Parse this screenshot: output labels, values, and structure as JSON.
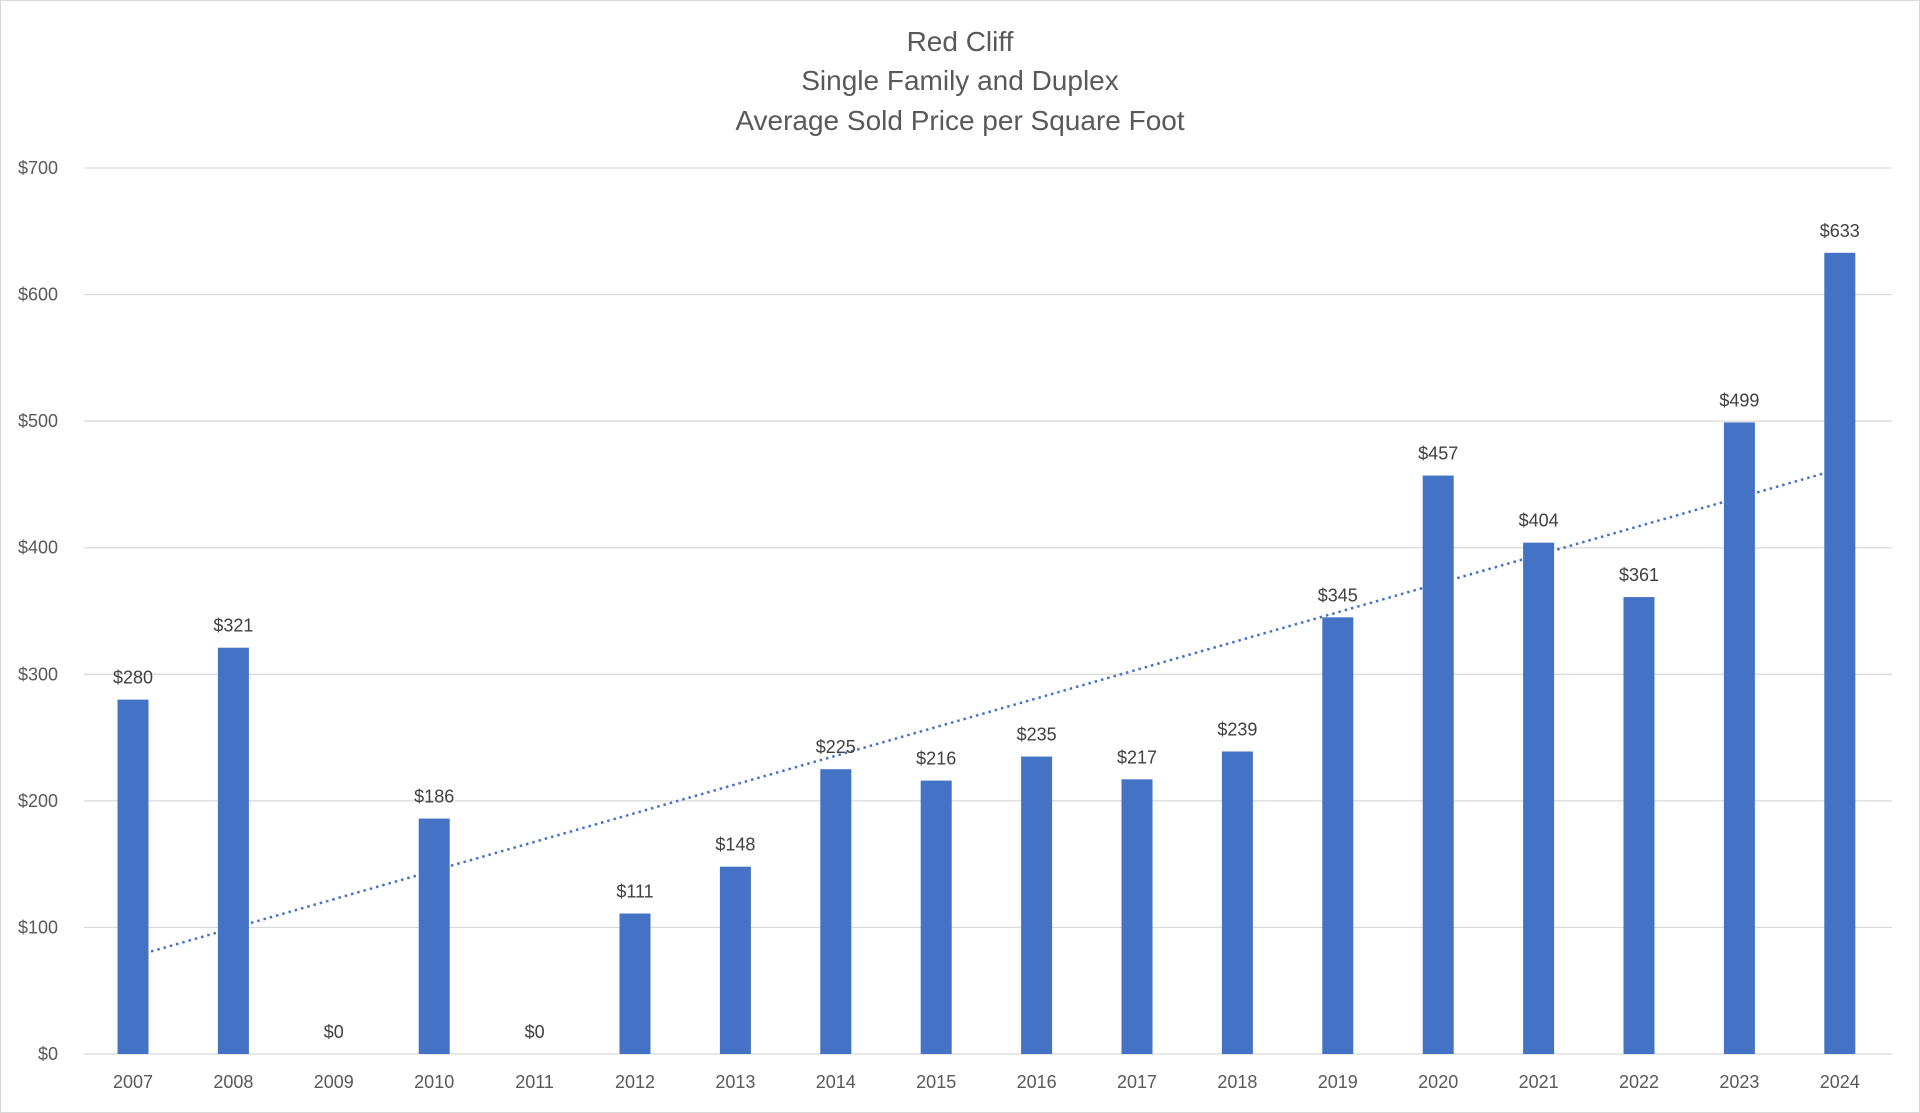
{
  "chart_data": {
    "type": "bar",
    "title_lines": [
      "Red Cliff",
      "Single Family and Duplex",
      "Average Sold Price per Square Foot"
    ],
    "xlabel": "",
    "ylabel": "",
    "categories": [
      "2007",
      "2008",
      "2009",
      "2010",
      "2011",
      "2012",
      "2013",
      "2014",
      "2015",
      "2016",
      "2017",
      "2018",
      "2019",
      "2020",
      "2021",
      "2022",
      "2023",
      "2024"
    ],
    "series": [
      {
        "values": [
          280,
          321,
          0,
          186,
          0,
          111,
          148,
          225,
          216,
          235,
          217,
          239,
          345,
          457,
          404,
          361,
          499,
          633
        ],
        "data_labels": [
          "$280",
          "$321",
          "$0",
          "$186",
          "$0",
          "$111",
          "$148",
          "$225",
          "$216",
          "$235",
          "$217",
          "$239",
          "$345",
          "$457",
          "$404",
          "$361",
          "$499",
          "$633"
        ],
        "color": "#4472c4"
      }
    ],
    "trendline": {
      "type": "linear",
      "style": "dotted",
      "color": "#4472c4",
      "start_value": 81,
      "end_value": 461
    },
    "ylim": [
      0,
      700
    ],
    "y_ticks": [
      0,
      100,
      200,
      300,
      400,
      500,
      600,
      700
    ],
    "y_tick_labels": [
      "$0",
      "$100",
      "$200",
      "$300",
      "$400",
      "$500",
      "$600",
      "$700"
    ],
    "grid": "horizontal",
    "gridline_color": "#d9d9d9",
    "legend": "none"
  }
}
